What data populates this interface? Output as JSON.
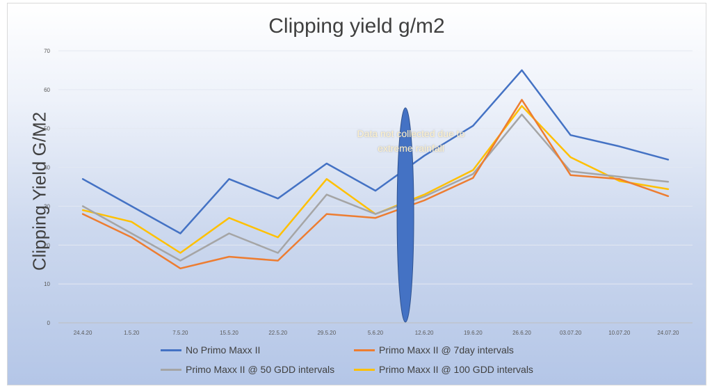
{
  "chart_data": {
    "type": "line",
    "title": "Clipping yield g/m2",
    "xlabel": "",
    "ylabel": "Clipping Yield G/M2",
    "ylim": [
      0,
      70
    ],
    "yticks": [
      0,
      10,
      20,
      30,
      40,
      50,
      60,
      70
    ],
    "grid": true,
    "legend_position": "bottom",
    "categories": [
      "24.4.20",
      "1.5.20",
      "7.5.20",
      "15.5.20",
      "22.5.20",
      "29.5.20",
      "5.6.20",
      "12.6.20",
      "19.6.20",
      "26.6.20",
      "03.07.20",
      "10.07.20",
      "24.07.20"
    ],
    "series": [
      {
        "name": "No Primo Maxx II",
        "color": "#4472c4",
        "values": [
          37,
          30,
          23,
          37,
          32,
          41,
          34,
          43,
          50.7,
          65,
          48.3,
          45.4,
          42
        ]
      },
      {
        "name": "Primo Maxx II @ 7day intervals",
        "color": "#ed7d31",
        "values": [
          28,
          22,
          14,
          17,
          16,
          28,
          27,
          31.5,
          37.3,
          57.4,
          38,
          37,
          32.6
        ]
      },
      {
        "name": "Primo Maxx II @ 50 GDD intervals",
        "color": "#a5a5a5",
        "values": [
          30,
          23,
          16,
          23,
          18,
          33,
          28,
          32.5,
          38.3,
          53.6,
          39,
          37.6,
          36.3
        ]
      },
      {
        "name": "Primo Maxx II @ 100 GDD intervals",
        "color": "#ffc000",
        "values": [
          29,
          26,
          18,
          27,
          22,
          37,
          28,
          33,
          39.3,
          55.8,
          42.6,
          36.5,
          34.4
        ]
      }
    ],
    "annotations": [
      {
        "text": "Data not collected due to extreme rainfall",
        "color": "#fff2cc",
        "marker_color": "#4472c4",
        "x_category": "12.6.20"
      }
    ]
  }
}
